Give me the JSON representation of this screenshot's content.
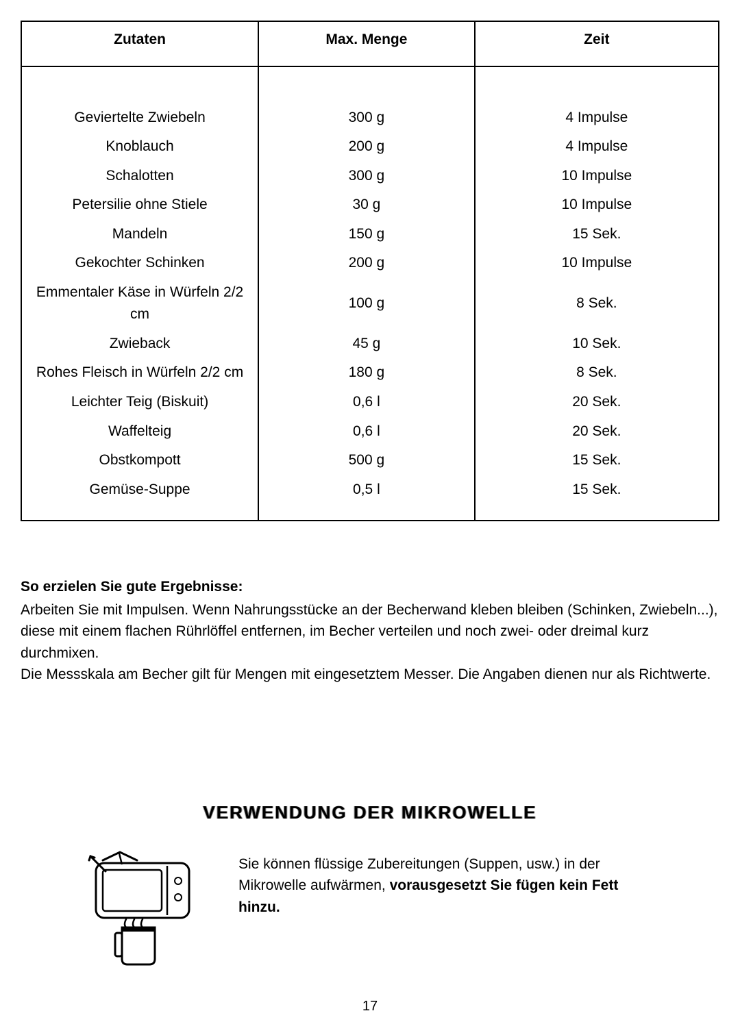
{
  "table": {
    "headers": [
      "Zutaten",
      "Max. Menge",
      "Zeit"
    ],
    "rows": [
      {
        "ingredient": "Geviertelte Zwiebeln",
        "amount": "300 g",
        "time": "4 Impulse"
      },
      {
        "ingredient": "Knoblauch",
        "amount": "200 g",
        "time": "4 Impulse"
      },
      {
        "ingredient": "Schalotten",
        "amount": "300 g",
        "time": "10 Impulse"
      },
      {
        "ingredient": "Petersilie ohne Stiele",
        "amount": "30 g",
        "time": "10 Impulse"
      },
      {
        "ingredient": "Mandeln",
        "amount": "150 g",
        "time": "15 Sek."
      },
      {
        "ingredient": "Gekochter Schinken",
        "amount": "200 g",
        "time": "10 Impulse"
      },
      {
        "ingredient": "Emmentaler Käse in Würfeln 2/2 cm",
        "amount": "100 g",
        "time": "8 Sek."
      },
      {
        "ingredient": "Zwieback",
        "amount": "45 g",
        "time": "10 Sek."
      },
      {
        "ingredient": "Rohes Fleisch in Würfeln 2/2 cm",
        "amount": "180 g",
        "time": "8 Sek."
      },
      {
        "ingredient": "Leichter Teig (Biskuit)",
        "amount": "0,6 l",
        "time": "20 Sek."
      },
      {
        "ingredient": "Waffelteig",
        "amount": "0,6 l",
        "time": "20 Sek."
      },
      {
        "ingredient": "Obstkompott",
        "amount": "500 g",
        "time": "15 Sek."
      },
      {
        "ingredient": "Gemüse-Suppe",
        "amount": "0,5 l",
        "time": "15 Sek."
      }
    ],
    "border_color": "#000000",
    "header_fontsize": 21,
    "cell_fontsize": 21
  },
  "tips": {
    "heading": "So erzielen Sie gute Ergebnisse:",
    "paragraph1": "Arbeiten Sie mit Impulsen. Wenn Nahrungsstücke an der Becherwand kleben bleiben (Schinken, Zwiebeln...), diese mit einem flachen Rührlöffel entfernen, im Becher verteilen und noch zwei- oder dreimal kurz durchmixen.",
    "paragraph2": "Die Messskala am Becher gilt für Mengen mit eingesetztem Messer. Die Angaben dienen nur als Richtwerte."
  },
  "microwave": {
    "title": "VERWENDUNG DER MIKROWELLE",
    "text_plain": "Sie können flüssige Zubereitungen (Suppen, usw.) in der Mikrowelle aufwärmen, ",
    "text_bold": "vorausgesetzt Sie fügen kein Fett hinzu.",
    "icon_name": "microwave-icon"
  },
  "page_number": "17",
  "colors": {
    "background": "#ffffff",
    "text": "#000000",
    "border": "#000000"
  },
  "typography": {
    "body_fontsize": 21,
    "title_fontsize": 26,
    "title_letterspacing": 2
  }
}
